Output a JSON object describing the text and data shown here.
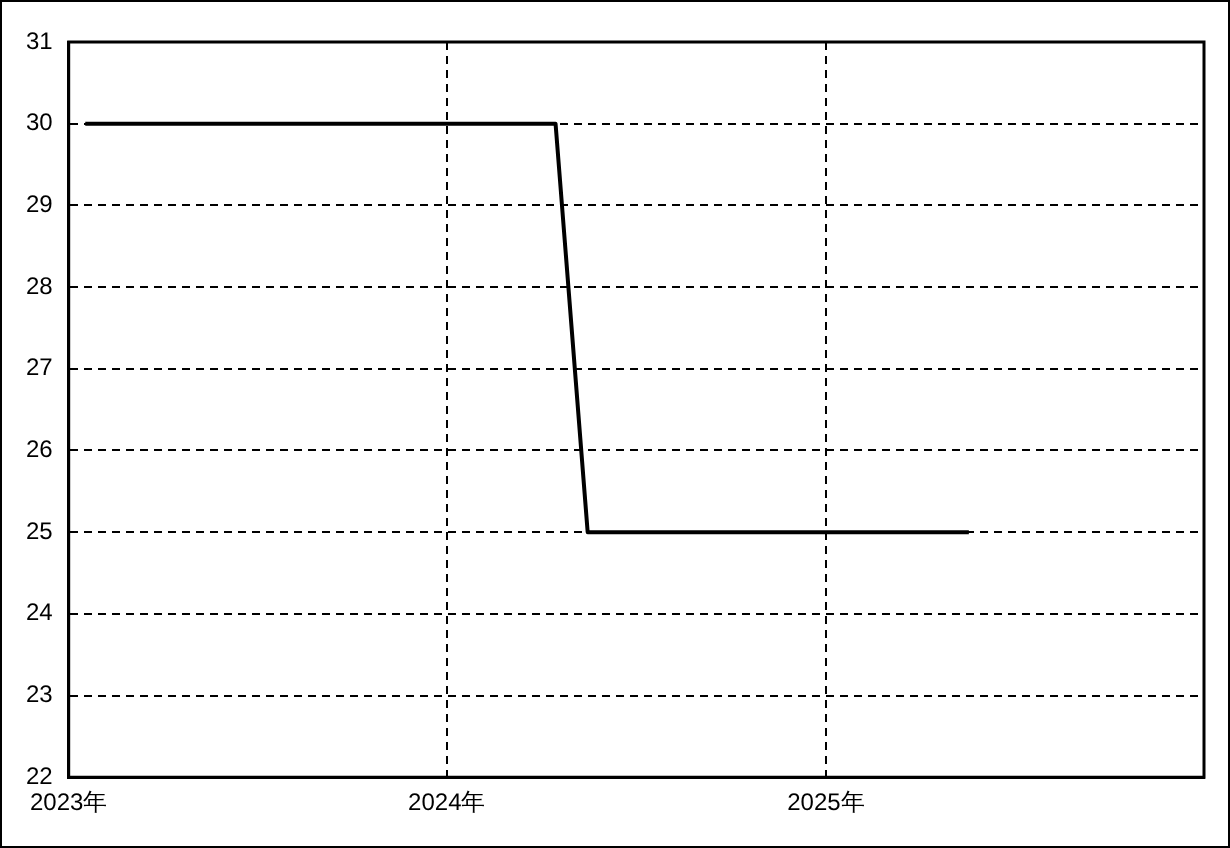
{
  "chart_data": {
    "type": "line",
    "x": [
      "2023-01-17",
      "2024-04-15",
      "2024-05-16",
      "2025-05-19"
    ],
    "series": [
      {
        "color": "#000000",
        "values": [
          30,
          30,
          25,
          25
        ]
      }
    ],
    "xlim": [
      "2023-01-01",
      "2026-01-01"
    ],
    "xticks": [
      {
        "value": "2023-01-01",
        "label": "2023年"
      },
      {
        "value": "2024-01-01",
        "label": "2024年"
      },
      {
        "value": "2025-01-01",
        "label": "2025年"
      }
    ],
    "ylim": [
      22,
      31
    ],
    "yticks": [
      22,
      23,
      24,
      25,
      26,
      27,
      28,
      29,
      30,
      31
    ],
    "grid": true,
    "legend": false,
    "marker": "none",
    "line_style": "solid"
  }
}
